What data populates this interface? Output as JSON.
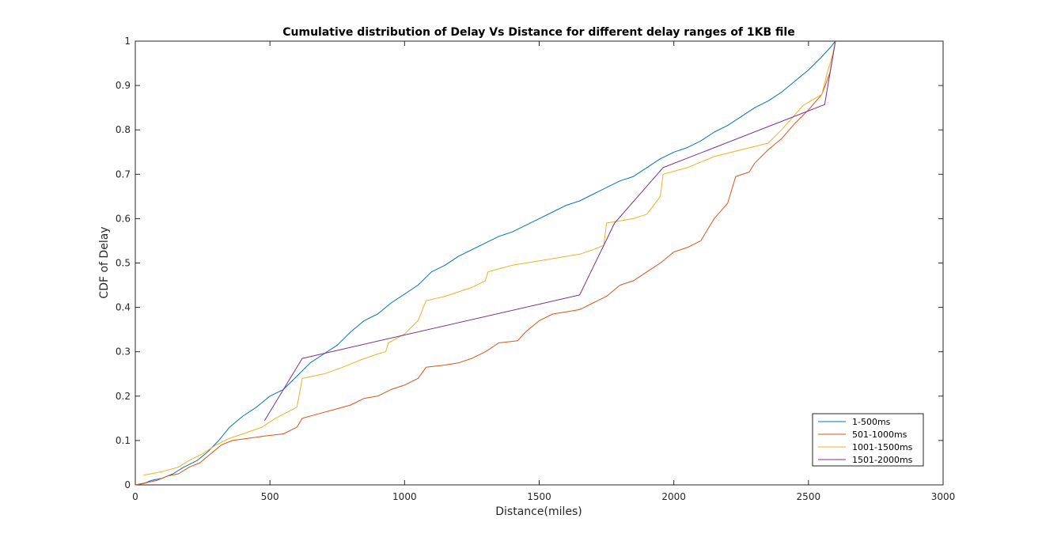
{
  "chart_data": {
    "type": "line",
    "title": "Cumulative distribution of Delay Vs Distance for different delay ranges of 1KB file",
    "xlabel": "Distance(miles)",
    "ylabel": "CDF of Delay",
    "xlim": [
      0,
      3000
    ],
    "ylim": [
      0,
      1
    ],
    "xticks": [
      0,
      500,
      1000,
      1500,
      2000,
      2500,
      3000
    ],
    "yticks": [
      0,
      0.1,
      0.2,
      0.3,
      0.4,
      0.5,
      0.6,
      0.7,
      0.8,
      0.9,
      1
    ],
    "grid": false,
    "legend_position": "bottom-right",
    "series": [
      {
        "name": "1-500ms",
        "color": "#0072BD",
        "points": [
          [
            0,
            0
          ],
          [
            30,
            0.003
          ],
          [
            60,
            0.01
          ],
          [
            100,
            0.015
          ],
          [
            140,
            0.025
          ],
          [
            180,
            0.04
          ],
          [
            230,
            0.055
          ],
          [
            270,
            0.075
          ],
          [
            310,
            0.1
          ],
          [
            350,
            0.13
          ],
          [
            400,
            0.155
          ],
          [
            450,
            0.175
          ],
          [
            500,
            0.2
          ],
          [
            550,
            0.215
          ],
          [
            600,
            0.245
          ],
          [
            650,
            0.275
          ],
          [
            700,
            0.295
          ],
          [
            750,
            0.315
          ],
          [
            800,
            0.345
          ],
          [
            850,
            0.37
          ],
          [
            900,
            0.385
          ],
          [
            950,
            0.41
          ],
          [
            1000,
            0.43
          ],
          [
            1050,
            0.45
          ],
          [
            1100,
            0.48
          ],
          [
            1150,
            0.495
          ],
          [
            1200,
            0.515
          ],
          [
            1250,
            0.53
          ],
          [
            1300,
            0.545
          ],
          [
            1350,
            0.56
          ],
          [
            1400,
            0.57
          ],
          [
            1450,
            0.585
          ],
          [
            1500,
            0.6
          ],
          [
            1550,
            0.615
          ],
          [
            1600,
            0.63
          ],
          [
            1650,
            0.64
          ],
          [
            1700,
            0.655
          ],
          [
            1750,
            0.67
          ],
          [
            1800,
            0.685
          ],
          [
            1850,
            0.695
          ],
          [
            1900,
            0.715
          ],
          [
            1950,
            0.735
          ],
          [
            2000,
            0.75
          ],
          [
            2050,
            0.76
          ],
          [
            2100,
            0.775
          ],
          [
            2150,
            0.795
          ],
          [
            2200,
            0.81
          ],
          [
            2250,
            0.83
          ],
          [
            2300,
            0.85
          ],
          [
            2350,
            0.865
          ],
          [
            2400,
            0.885
          ],
          [
            2450,
            0.91
          ],
          [
            2500,
            0.935
          ],
          [
            2550,
            0.965
          ],
          [
            2580,
            0.985
          ],
          [
            2600,
            1.0
          ]
        ]
      },
      {
        "name": "501-1000ms",
        "color": "#D95319",
        "points": [
          [
            0,
            0
          ],
          [
            40,
            0.005
          ],
          [
            80,
            0.01
          ],
          [
            120,
            0.02
          ],
          [
            160,
            0.025
          ],
          [
            200,
            0.04
          ],
          [
            240,
            0.05
          ],
          [
            280,
            0.07
          ],
          [
            320,
            0.09
          ],
          [
            360,
            0.1
          ],
          [
            420,
            0.105
          ],
          [
            480,
            0.11
          ],
          [
            550,
            0.115
          ],
          [
            600,
            0.13
          ],
          [
            620,
            0.15
          ],
          [
            680,
            0.16
          ],
          [
            740,
            0.17
          ],
          [
            800,
            0.18
          ],
          [
            850,
            0.195
          ],
          [
            900,
            0.2
          ],
          [
            950,
            0.215
          ],
          [
            1000,
            0.225
          ],
          [
            1050,
            0.24
          ],
          [
            1080,
            0.265
          ],
          [
            1150,
            0.27
          ],
          [
            1200,
            0.275
          ],
          [
            1250,
            0.285
          ],
          [
            1300,
            0.3
          ],
          [
            1350,
            0.32
          ],
          [
            1420,
            0.325
          ],
          [
            1450,
            0.345
          ],
          [
            1500,
            0.37
          ],
          [
            1550,
            0.385
          ],
          [
            1600,
            0.39
          ],
          [
            1650,
            0.395
          ],
          [
            1700,
            0.41
          ],
          [
            1750,
            0.425
          ],
          [
            1800,
            0.45
          ],
          [
            1850,
            0.46
          ],
          [
            1900,
            0.48
          ],
          [
            1950,
            0.5
          ],
          [
            2000,
            0.525
          ],
          [
            2050,
            0.535
          ],
          [
            2100,
            0.55
          ],
          [
            2150,
            0.6
          ],
          [
            2200,
            0.635
          ],
          [
            2230,
            0.695
          ],
          [
            2280,
            0.705
          ],
          [
            2300,
            0.725
          ],
          [
            2350,
            0.755
          ],
          [
            2400,
            0.78
          ],
          [
            2450,
            0.815
          ],
          [
            2500,
            0.845
          ],
          [
            2550,
            0.88
          ],
          [
            2580,
            0.93
          ],
          [
            2600,
            1.0
          ]
        ]
      },
      {
        "name": "1001-1500ms",
        "color": "#EDB120",
        "points": [
          [
            30,
            0.022
          ],
          [
            100,
            0.03
          ],
          [
            160,
            0.04
          ],
          [
            200,
            0.055
          ],
          [
            250,
            0.07
          ],
          [
            300,
            0.09
          ],
          [
            350,
            0.105
          ],
          [
            400,
            0.115
          ],
          [
            470,
            0.13
          ],
          [
            520,
            0.15
          ],
          [
            600,
            0.175
          ],
          [
            620,
            0.24
          ],
          [
            700,
            0.25
          ],
          [
            770,
            0.265
          ],
          [
            830,
            0.28
          ],
          [
            900,
            0.295
          ],
          [
            930,
            0.3
          ],
          [
            940,
            0.32
          ],
          [
            1000,
            0.34
          ],
          [
            1050,
            0.37
          ],
          [
            1080,
            0.415
          ],
          [
            1150,
            0.425
          ],
          [
            1200,
            0.435
          ],
          [
            1250,
            0.445
          ],
          [
            1300,
            0.46
          ],
          [
            1310,
            0.48
          ],
          [
            1400,
            0.495
          ],
          [
            1500,
            0.505
          ],
          [
            1600,
            0.515
          ],
          [
            1650,
            0.52
          ],
          [
            1700,
            0.53
          ],
          [
            1740,
            0.54
          ],
          [
            1750,
            0.59
          ],
          [
            1850,
            0.6
          ],
          [
            1900,
            0.61
          ],
          [
            1950,
            0.65
          ],
          [
            1960,
            0.7
          ],
          [
            2050,
            0.715
          ],
          [
            2150,
            0.74
          ],
          [
            2250,
            0.755
          ],
          [
            2350,
            0.77
          ],
          [
            2400,
            0.8
          ],
          [
            2480,
            0.855
          ],
          [
            2550,
            0.88
          ],
          [
            2570,
            0.93
          ],
          [
            2590,
            0.97
          ],
          [
            2600,
            1.0
          ]
        ]
      },
      {
        "name": "1501-2000ms",
        "color": "#7E2F8E",
        "points": [
          [
            480,
            0.145
          ],
          [
            620,
            0.285
          ],
          [
            1650,
            0.428
          ],
          [
            1780,
            0.59
          ],
          [
            1960,
            0.715
          ],
          [
            2560,
            0.857
          ],
          [
            2600,
            1.0
          ]
        ]
      }
    ]
  }
}
